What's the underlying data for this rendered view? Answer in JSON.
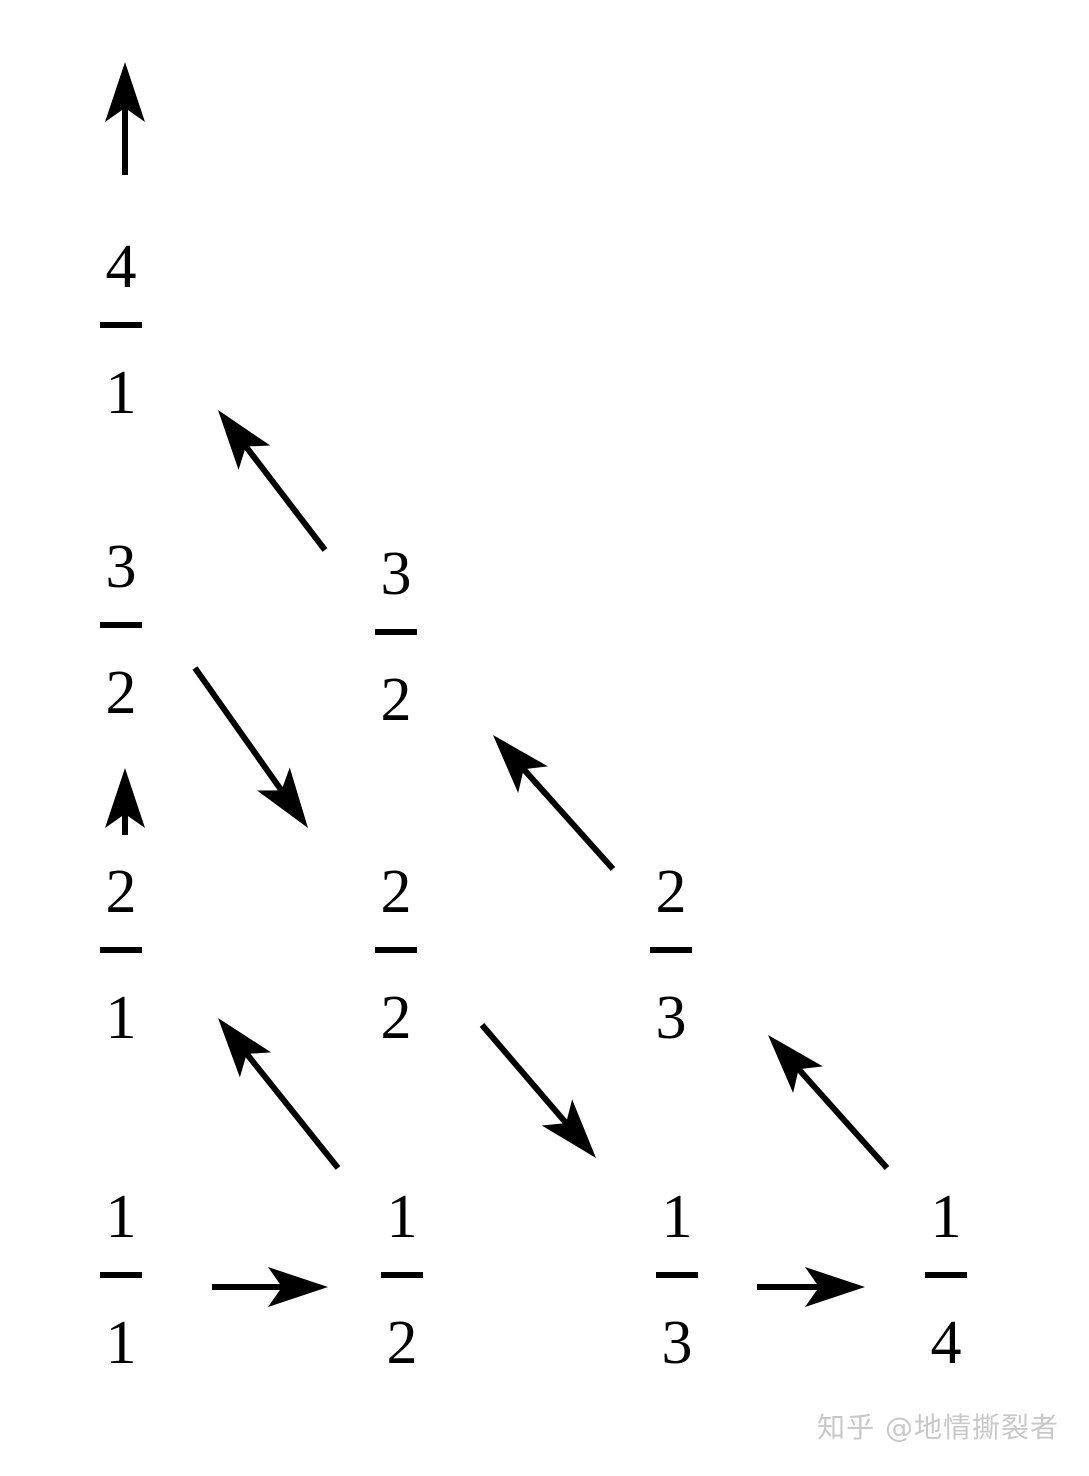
{
  "fractions": [
    {
      "id": "1-1",
      "numerator": "1",
      "denominator": "1"
    },
    {
      "id": "1-2",
      "numerator": "1",
      "denominator": "2"
    },
    {
      "id": "1-3",
      "numerator": "1",
      "denominator": "3"
    },
    {
      "id": "1-4",
      "numerator": "1",
      "denominator": "4"
    },
    {
      "id": "2-1",
      "numerator": "2",
      "denominator": "1"
    },
    {
      "id": "2-2",
      "numerator": "2",
      "denominator": "2"
    },
    {
      "id": "2-3",
      "numerator": "2",
      "denominator": "3"
    },
    {
      "id": "3-2-left",
      "numerator": "3",
      "denominator": "2"
    },
    {
      "id": "3-2-right",
      "numerator": "3",
      "denominator": "2"
    },
    {
      "id": "4-1",
      "numerator": "4",
      "denominator": "1"
    }
  ],
  "arrows": [
    {
      "from": "1-1",
      "to": "1-2"
    },
    {
      "from": "1-2",
      "to": "2-1"
    },
    {
      "from": "2-1",
      "to": "3-2-left"
    },
    {
      "from": "3-2-left",
      "to": "2-2"
    },
    {
      "from": "2-2",
      "to": "1-3"
    },
    {
      "from": "1-3",
      "to": "1-4"
    },
    {
      "from": "1-4",
      "to": "2-3"
    },
    {
      "from": "2-3",
      "to": "3-2-right"
    },
    {
      "from": "3-2-right",
      "to": "4-1"
    },
    {
      "from": "4-1",
      "to": "continues-up"
    }
  ],
  "watermark": "知乎 @地情撕裂者"
}
